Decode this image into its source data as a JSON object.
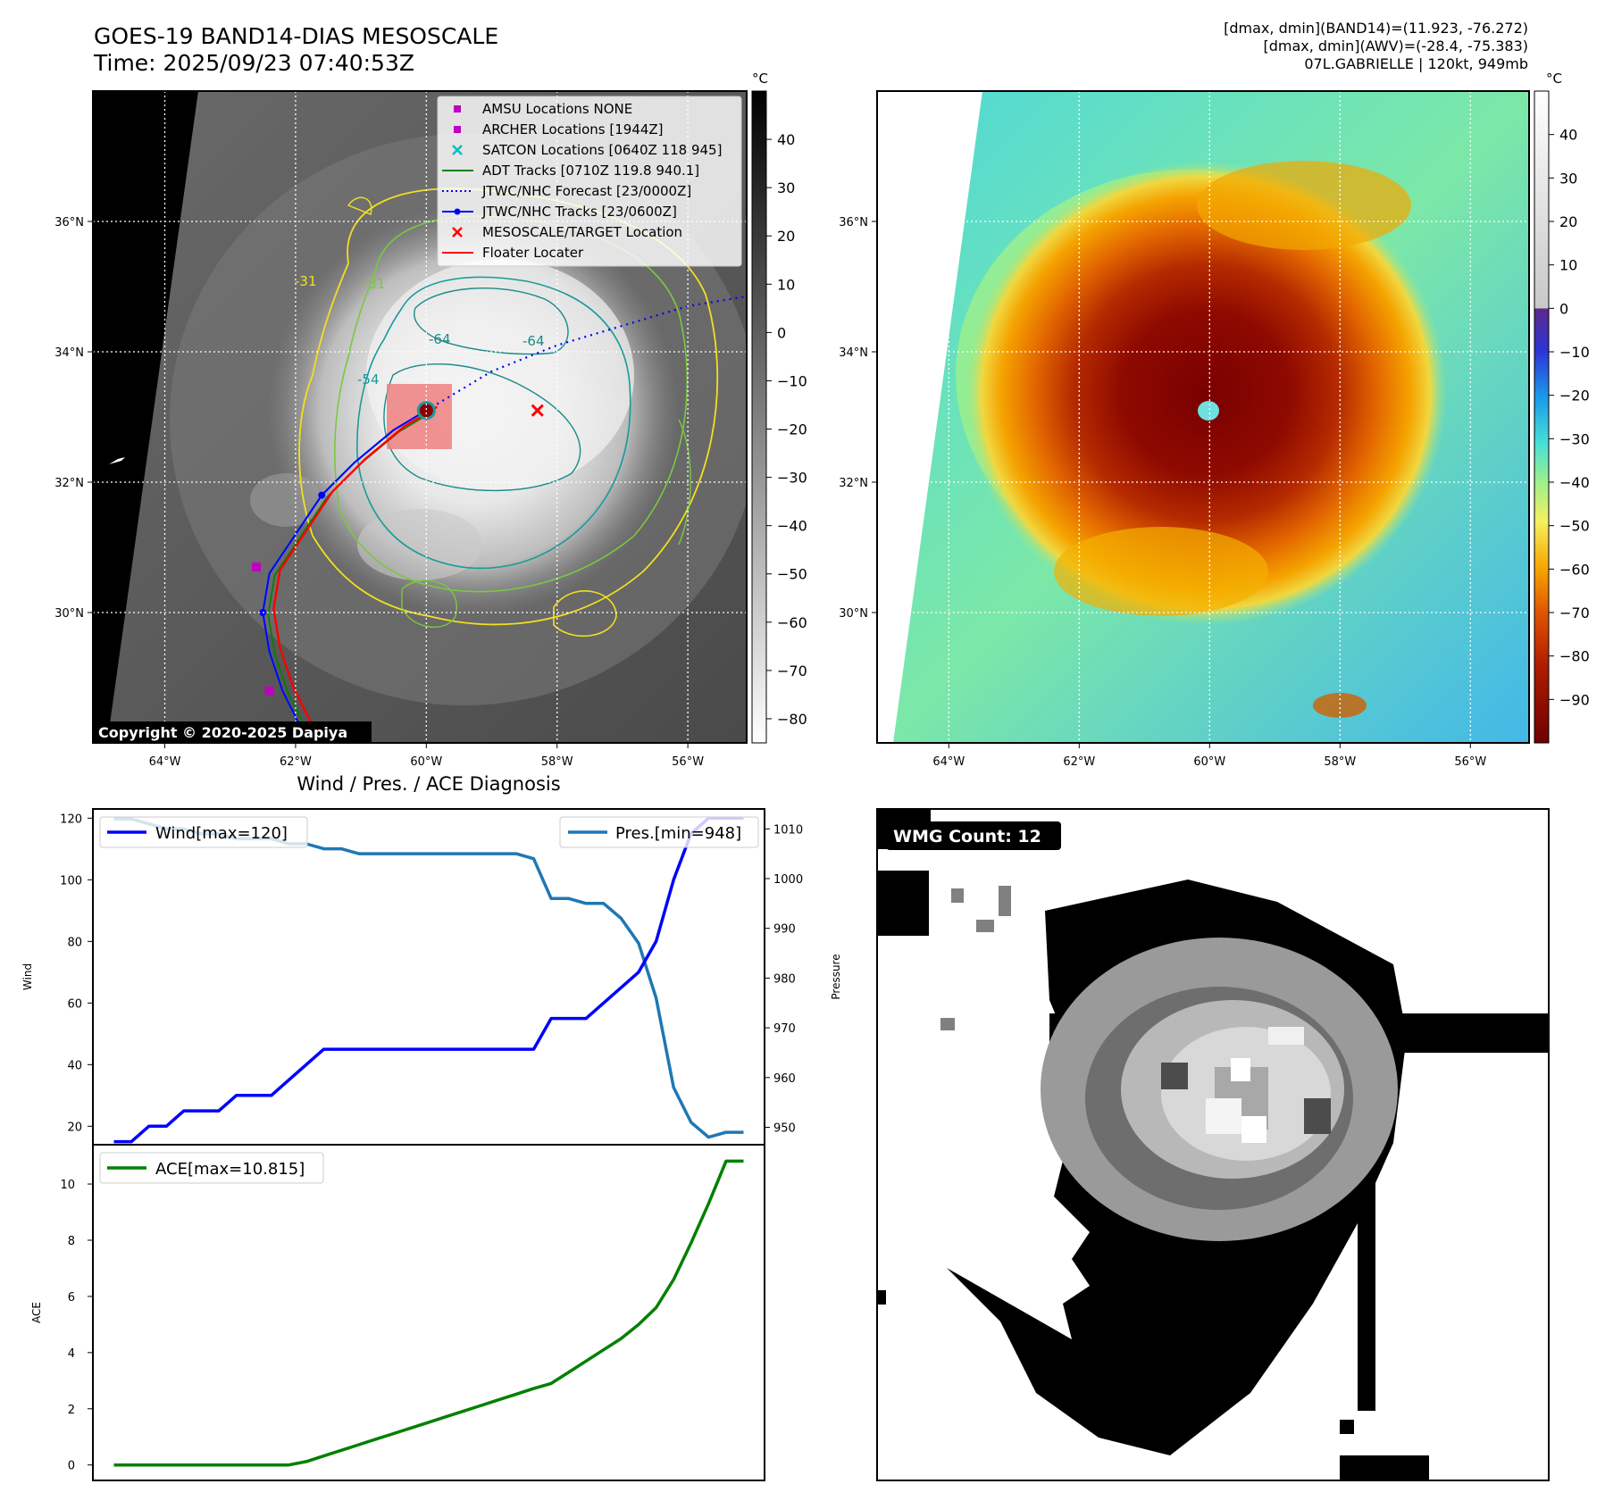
{
  "header": {
    "title_line1": "GOES-19 BAND14-DIAS MESOSCALE",
    "title_line2": "Time: 2025/09/23 07:40:53Z",
    "info_line1": "[dmax, dmin](BAND14)=(11.923, -76.272)",
    "info_line2": "[dmax, dmin](AWV)=(-28.4, -75.383)",
    "info_line3": "07L.GABRIELLE | 120kt, 949mb"
  },
  "map_axes": {
    "lon_ticks": [
      "64°W",
      "62°W",
      "60°W",
      "58°W",
      "56°W"
    ],
    "lon_values": [
      -64,
      -62,
      -60,
      -58,
      -56
    ],
    "lat_ticks": [
      "36°N",
      "34°N",
      "32°N",
      "30°N"
    ],
    "lat_values": [
      36,
      34,
      32,
      30
    ],
    "lon_range": [
      -65.1,
      -55.1
    ],
    "lat_range": [
      28.0,
      38.0
    ]
  },
  "ir_panel": {
    "colorbar_unit": "°C",
    "colorbar_ticks": [
      40,
      30,
      20,
      10,
      0,
      -10,
      -20,
      -30,
      -40,
      -50,
      -60,
      -70,
      -80
    ],
    "colorbar_range": [
      -85,
      50
    ],
    "copyright": "Copyright © 2020-2025 Dapiya",
    "contour_labels": [
      "-31",
      "-64",
      "-64",
      "-31",
      "-54"
    ],
    "legend": [
      {
        "label": "AMSU Locations NONE",
        "kind": "square",
        "color": "#bf00bf"
      },
      {
        "label": "ARCHER Locations [1944Z]",
        "kind": "square",
        "color": "#bf00bf"
      },
      {
        "label": "SATCON Locations [0640Z 118 945]",
        "kind": "x",
        "color": "#00bfbf"
      },
      {
        "label": "ADT Tracks [0710Z 119.8 940.1]",
        "kind": "line",
        "color": "#008000"
      },
      {
        "label": "JTWC/NHC Forecast [23/0000Z]",
        "kind": "dotted",
        "color": "#0000ff"
      },
      {
        "label": "JTWC/NHC Tracks [23/0600Z]",
        "kind": "line-dot",
        "color": "#0000ff"
      },
      {
        "label": "MESOSCALE/TARGET Location",
        "kind": "x",
        "color": "#ff0000"
      },
      {
        "label": "Floater Locater",
        "kind": "line",
        "color": "#ff0000"
      }
    ],
    "storm_center": {
      "lon": -60.0,
      "lat": 33.1
    },
    "target_location": {
      "lon": -58.3,
      "lat": 33.1
    },
    "archer_points": [
      {
        "lon": -62.6,
        "lat": 30.7
      },
      {
        "lon": -62.4,
        "lat": 28.8
      }
    ],
    "best_track": [
      {
        "lon": -61.8,
        "lat": 28.0
      },
      {
        "lon": -62.2,
        "lat": 28.8
      },
      {
        "lon": -62.4,
        "lat": 29.4
      },
      {
        "lon": -62.5,
        "lat": 30.0
      },
      {
        "lon": -62.4,
        "lat": 30.6
      },
      {
        "lon": -62.0,
        "lat": 31.2
      },
      {
        "lon": -61.6,
        "lat": 31.8
      },
      {
        "lon": -61.1,
        "lat": 32.3
      },
      {
        "lon": -60.5,
        "lat": 32.8
      },
      {
        "lon": -60.0,
        "lat": 33.1
      }
    ],
    "forecast_track": [
      {
        "lon": -60.0,
        "lat": 33.1
      },
      {
        "lon": -59.0,
        "lat": 33.7
      },
      {
        "lon": -58.0,
        "lat": 34.1
      },
      {
        "lon": -57.0,
        "lat": 34.4
      },
      {
        "lon": -56.0,
        "lat": 34.7
      },
      {
        "lon": -55.1,
        "lat": 34.85
      }
    ]
  },
  "awv_panel": {
    "colorbar_unit": "°C",
    "colorbar_ticks": [
      40,
      30,
      20,
      10,
      0,
      -10,
      -20,
      -30,
      -40,
      -50,
      -60,
      -70,
      -80,
      -90
    ],
    "colorbar_range": [
      -100,
      50
    ]
  },
  "diagnosis": {
    "title": "Wind / Pres. / ACE Diagnosis",
    "wind_ylabel": "Wind",
    "pres_ylabel": "Pressure",
    "ace_ylabel": "ACE",
    "wind_legend": "Wind[max=120]",
    "pres_legend": "Pres.[min=948]",
    "ace_legend": "ACE[max=10.815]",
    "wind_ticks": [
      20,
      40,
      60,
      80,
      100,
      120
    ],
    "pres_ticks": [
      950,
      960,
      970,
      980,
      990,
      1000,
      1010
    ],
    "ace_ticks": [
      0,
      2,
      4,
      6,
      8,
      10
    ],
    "wind_color": "#0000ff",
    "pres_color": "#1f77b4",
    "ace_color": "#008000"
  },
  "chart_data": [
    {
      "type": "line",
      "title": "Wind / Pres. / ACE Diagnosis",
      "xlabel": "",
      "ylabel": "Wind",
      "ylim": [
        14,
        123
      ],
      "x": [
        0,
        1,
        2,
        3,
        4,
        5,
        6,
        7,
        8,
        9,
        10,
        11,
        12,
        13,
        14,
        15,
        16,
        17,
        18,
        19,
        20,
        21,
        22,
        23,
        24,
        25,
        26,
        27,
        28,
        29,
        30,
        31,
        32,
        33,
        34,
        35,
        36
      ],
      "series": [
        {
          "name": "Wind[max=120]",
          "values": [
            15,
            15,
            20,
            20,
            25,
            25,
            25,
            30,
            30,
            30,
            35,
            40,
            45,
            45,
            45,
            45,
            45,
            45,
            45,
            45,
            45,
            45,
            45,
            45,
            45,
            55,
            55,
            55,
            60,
            65,
            70,
            80,
            100,
            115,
            120,
            120,
            120
          ]
        }
      ]
    },
    {
      "type": "line",
      "xlabel": "",
      "ylabel": "Pressure",
      "ylim": [
        946.5,
        1014
      ],
      "x": [
        0,
        1,
        2,
        3,
        4,
        5,
        6,
        7,
        8,
        9,
        10,
        11,
        12,
        13,
        14,
        15,
        16,
        17,
        18,
        19,
        20,
        21,
        22,
        23,
        24,
        25,
        26,
        27,
        28,
        29,
        30,
        31,
        32,
        33,
        34,
        35,
        36
      ],
      "series": [
        {
          "name": "Pres.[min=948]",
          "values": [
            1012,
            1012,
            1011,
            1010,
            1010,
            1009,
            1009,
            1008,
            1008,
            1008,
            1007,
            1007,
            1006,
            1006,
            1005,
            1005,
            1005,
            1005,
            1005,
            1005,
            1005,
            1005,
            1005,
            1005,
            1004,
            996,
            996,
            995,
            995,
            992,
            987,
            976,
            958,
            951,
            948,
            949,
            949
          ]
        }
      ]
    },
    {
      "type": "line",
      "xlabel": "",
      "ylabel": "ACE",
      "ylim": [
        -0.55,
        11.4
      ],
      "x": [
        0,
        1,
        2,
        3,
        4,
        5,
        6,
        7,
        8,
        9,
        10,
        11,
        12,
        13,
        14,
        15,
        16,
        17,
        18,
        19,
        20,
        21,
        22,
        23,
        24,
        25,
        26,
        27,
        28,
        29,
        30,
        31,
        32,
        33,
        34,
        35,
        36
      ],
      "series": [
        {
          "name": "ACE[max=10.815]",
          "values": [
            0,
            0,
            0,
            0,
            0,
            0,
            0,
            0,
            0,
            0,
            0,
            0.12,
            0.32,
            0.52,
            0.72,
            0.92,
            1.12,
            1.32,
            1.52,
            1.72,
            1.92,
            2.12,
            2.32,
            2.52,
            2.72,
            2.9,
            3.3,
            3.7,
            4.1,
            4.5,
            5.0,
            5.6,
            6.6,
            7.9,
            9.3,
            10.815,
            10.815
          ]
        }
      ]
    }
  ],
  "wmg_panel": {
    "badge": "WMG Count: 12"
  }
}
